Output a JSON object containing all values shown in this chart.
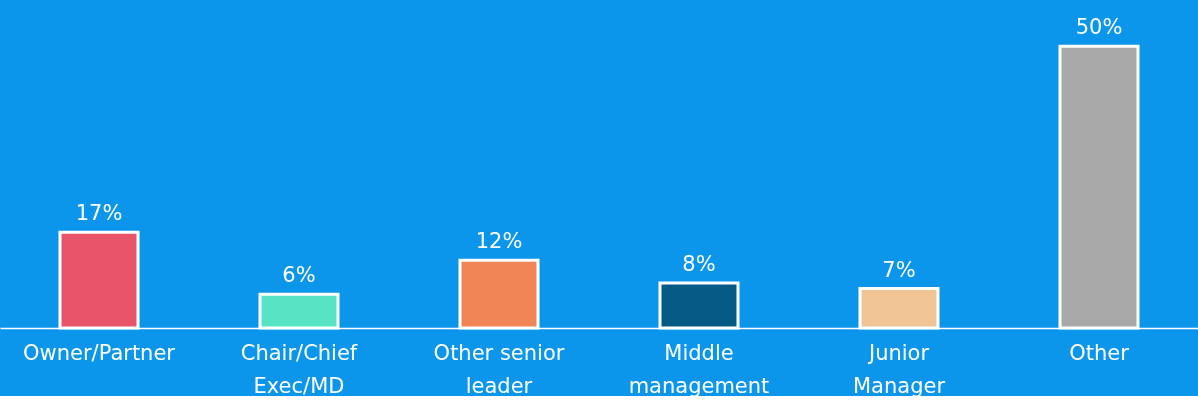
{
  "chart_data": {
    "type": "bar",
    "categories": [
      "Owner/Partner",
      "Chair/Chief Exec/MD",
      "Other senior leader",
      "Middle management",
      "Junior Manager",
      "Other"
    ],
    "values": [
      17,
      6,
      12,
      8,
      7,
      50
    ],
    "colors": [
      "#e8546a",
      "#56e4c4",
      "#f08454",
      "#045a84",
      "#f0c494",
      "#a8a8a8"
    ],
    "value_labels": [
      "17%",
      "6%",
      "12%",
      "8%",
      "7%",
      "50%"
    ],
    "grid": false
  }
}
